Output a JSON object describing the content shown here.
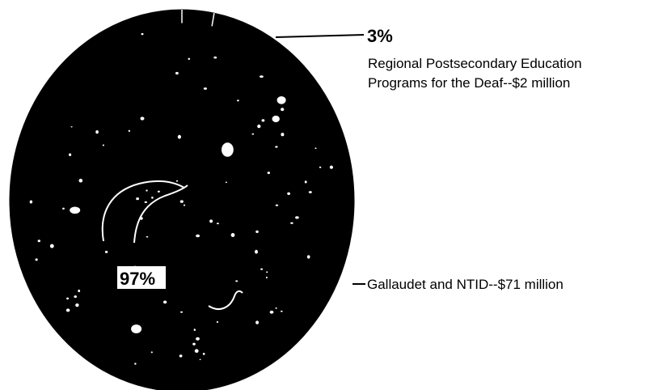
{
  "chart_data": {
    "type": "pie",
    "slices": [
      {
        "value": 97,
        "percent_label": "97%",
        "label": "Gallaudet and NTID--$71 million",
        "color": "#000000"
      },
      {
        "value": 3,
        "percent_label": "3%",
        "label_lines": [
          "Regional Postsecondary Education",
          "Programs for the Deaf--$2 million"
        ],
        "color": "#000000"
      }
    ]
  }
}
